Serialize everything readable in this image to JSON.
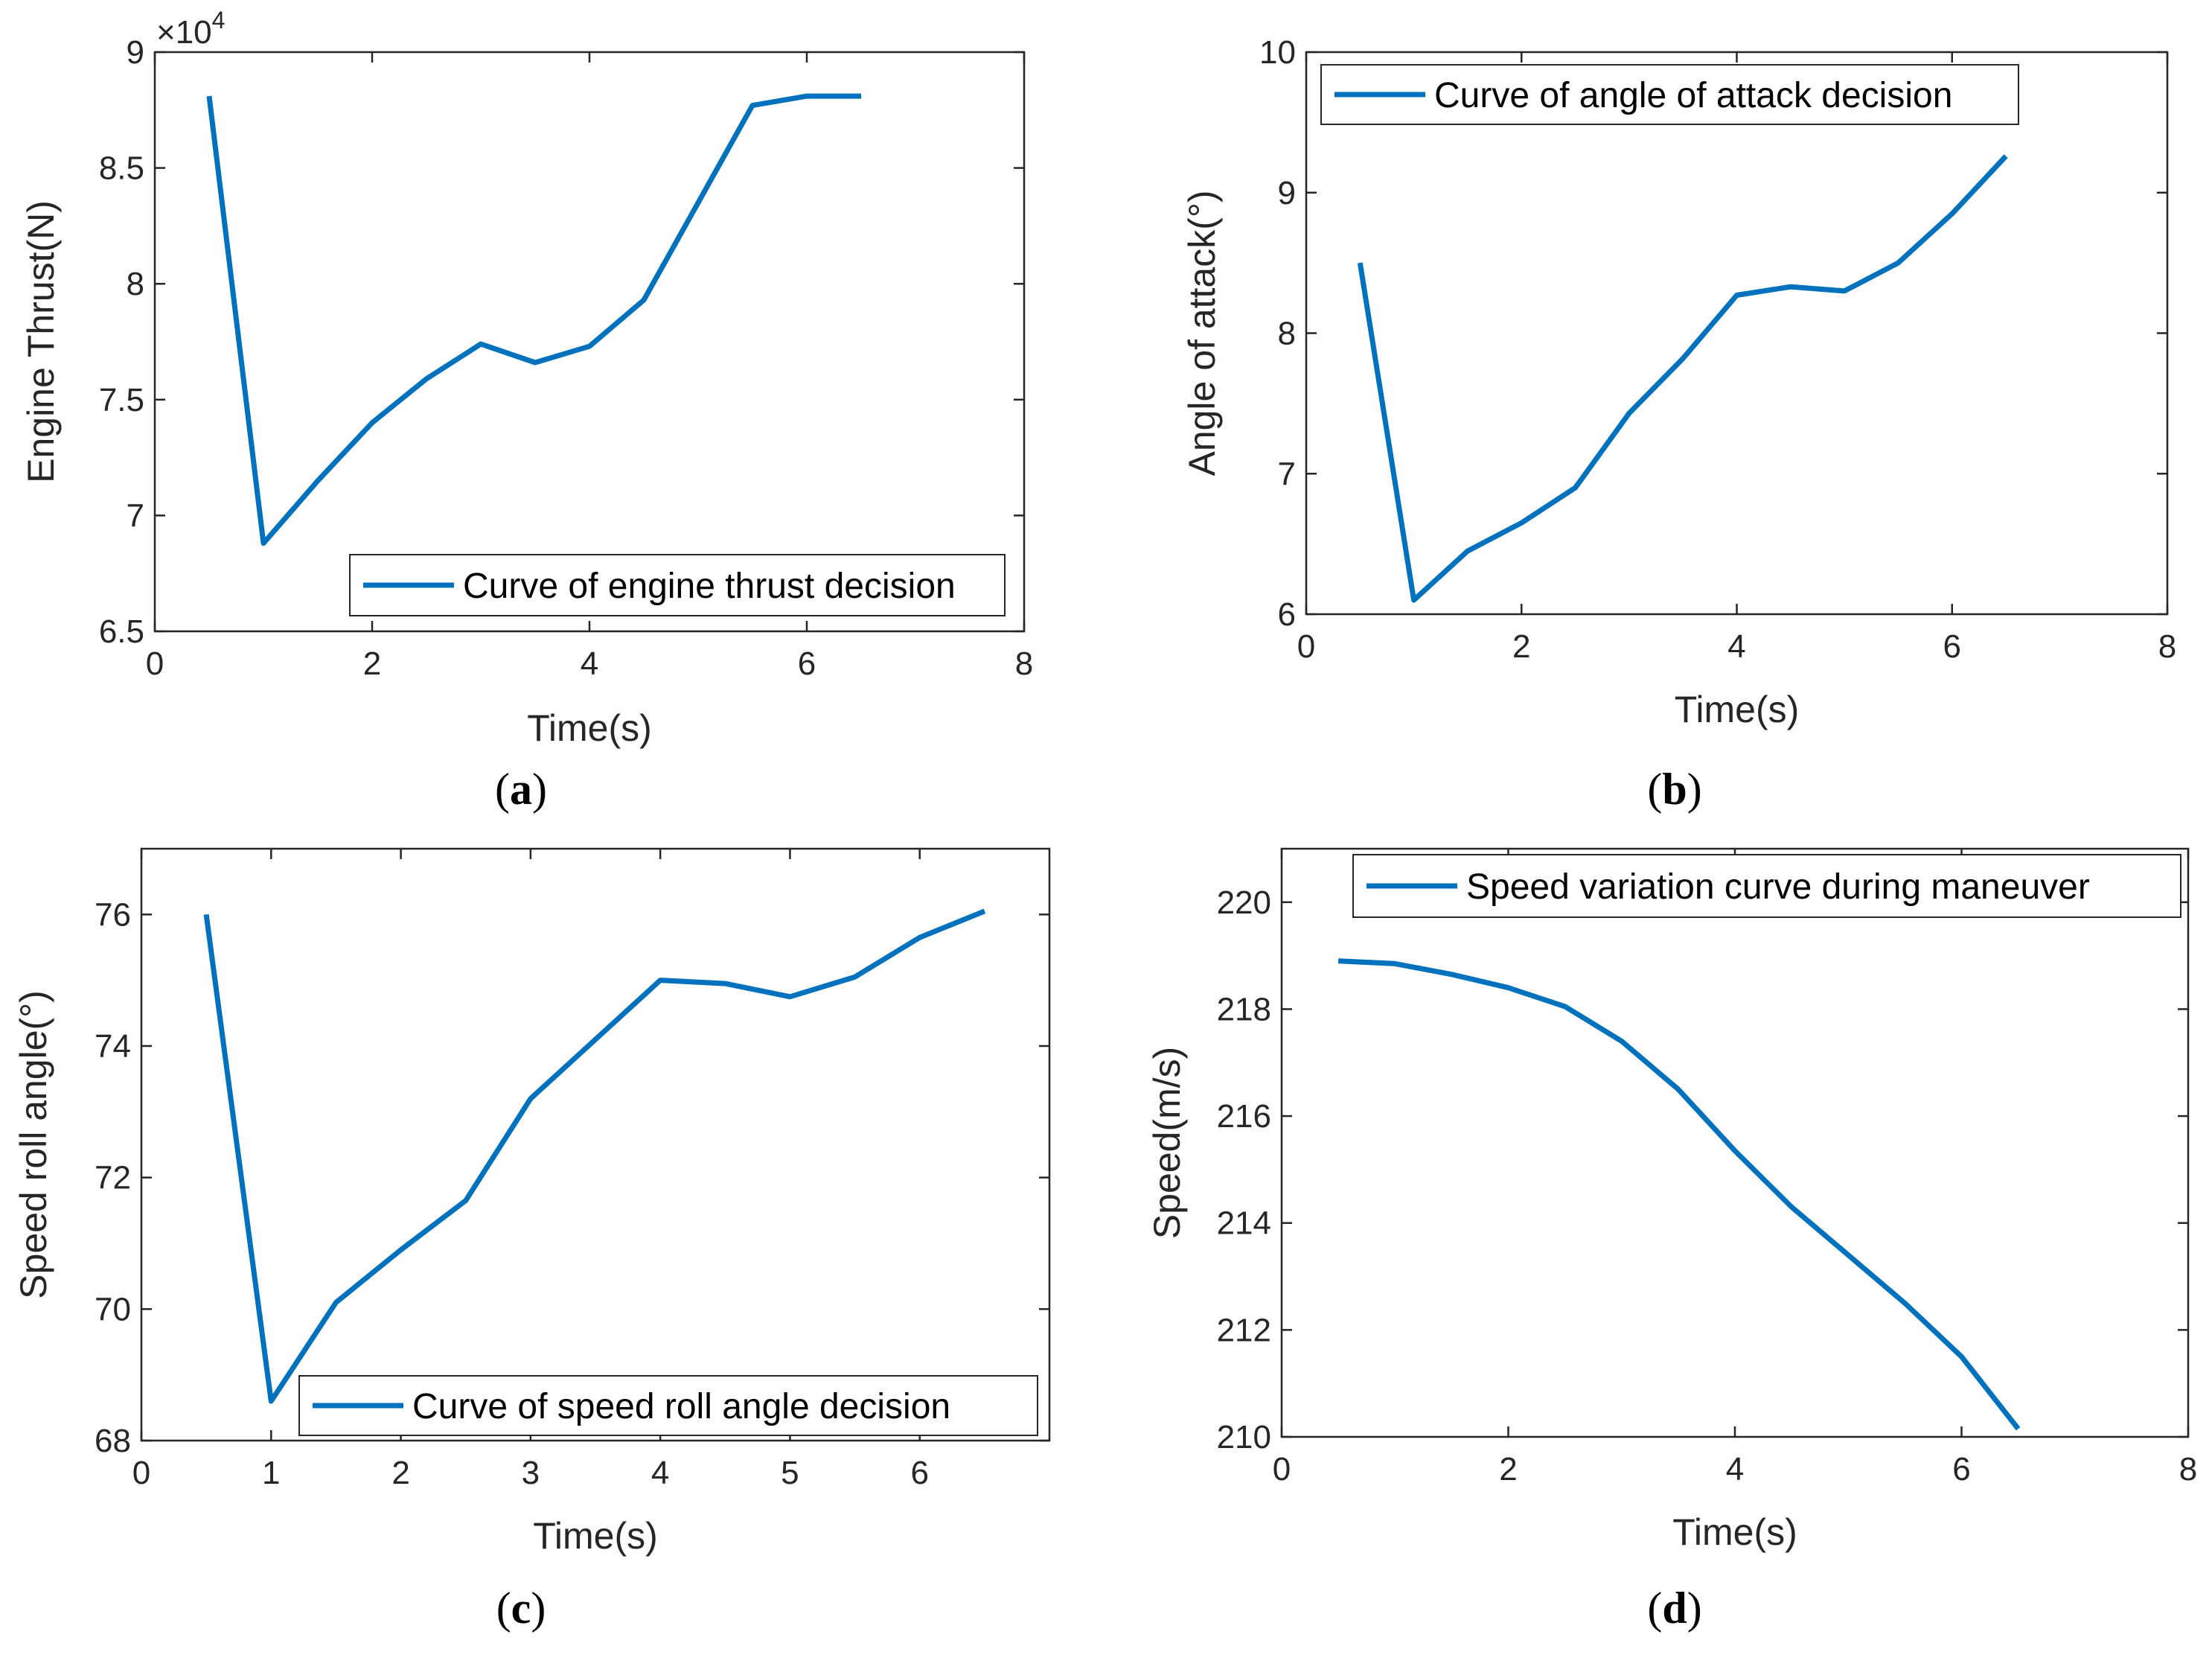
{
  "figure": {
    "line_color": "#0072BD",
    "captions": [
      {
        "open": "(",
        "letter": "a",
        "close": ")"
      },
      {
        "open": "(",
        "letter": "b",
        "close": ")"
      },
      {
        "open": "(",
        "letter": "c",
        "close": ")"
      },
      {
        "open": "(",
        "letter": "d",
        "close": ")"
      }
    ]
  },
  "chart_data": [
    {
      "id": "a",
      "type": "line",
      "title": "",
      "xlabel": "Time(s)",
      "ylabel": "Engine Thrust(N)",
      "xlim": [
        0,
        8
      ],
      "ylim": [
        65000,
        90000
      ],
      "xticks": [
        0,
        2,
        4,
        6,
        8
      ],
      "xtick_labels": [
        "0",
        "2",
        "4",
        "6",
        "8"
      ],
      "yticks": [
        65000,
        70000,
        75000,
        80000,
        85000,
        90000
      ],
      "ytick_labels": [
        "6.5",
        "7",
        "7.5",
        "8",
        "8.5",
        "9"
      ],
      "y_exponent": {
        "base": "×10",
        "power": "4"
      },
      "legend_location": "bottom-right",
      "series": [
        {
          "name": "Curve of engine thrust decision",
          "x": [
            0.5,
            1.0,
            1.5,
            2.0,
            2.5,
            3.0,
            3.5,
            4.0,
            4.5,
            5.0,
            5.5,
            6.0,
            6.5
          ],
          "y": [
            88100,
            68800,
            71500,
            74000,
            75900,
            77400,
            76600,
            77300,
            79300,
            83500,
            87700,
            88100,
            88100
          ]
        }
      ]
    },
    {
      "id": "b",
      "type": "line",
      "title": "",
      "xlabel": "Time(s)",
      "ylabel": "Angle of attack(°)",
      "xlim": [
        0,
        8
      ],
      "ylim": [
        6,
        10
      ],
      "xticks": [
        0,
        2,
        4,
        6,
        8
      ],
      "xtick_labels": [
        "0",
        "2",
        "4",
        "6",
        "8"
      ],
      "yticks": [
        6,
        7,
        8,
        9,
        10
      ],
      "ytick_labels": [
        "6",
        "7",
        "8",
        "9",
        "10"
      ],
      "legend_location": "top-left",
      "series": [
        {
          "name": "Curve of angle of attack decision",
          "x": [
            0.5,
            1.0,
            1.5,
            2.0,
            2.5,
            3.0,
            3.5,
            4.0,
            4.5,
            5.0,
            5.5,
            6.0,
            6.5
          ],
          "y": [
            8.5,
            6.1,
            6.45,
            6.65,
            6.9,
            7.43,
            7.82,
            8.27,
            8.33,
            8.3,
            8.5,
            8.85,
            9.26
          ]
        }
      ]
    },
    {
      "id": "c",
      "type": "line",
      "title": "",
      "xlabel": "Time(s)",
      "ylabel": "Speed roll angle(°)",
      "xlim": [
        0,
        7
      ],
      "ylim": [
        68,
        77
      ],
      "xticks": [
        0,
        1,
        2,
        3,
        4,
        5,
        6
      ],
      "xtick_labels": [
        "0",
        "1",
        "2",
        "3",
        "4",
        "5",
        "6"
      ],
      "yticks": [
        68,
        70,
        72,
        74,
        76
      ],
      "ytick_labels": [
        "68",
        "70",
        "72",
        "74",
        "76"
      ],
      "legend_location": "bottom-right",
      "series": [
        {
          "name": "Curve of speed roll angle decision",
          "x": [
            0.5,
            1.0,
            1.5,
            2.0,
            2.5,
            3.0,
            3.5,
            4.0,
            4.5,
            5.0,
            5.5,
            6.0,
            6.5
          ],
          "y": [
            76.0,
            68.6,
            70.1,
            70.9,
            71.65,
            73.2,
            74.1,
            75.0,
            74.95,
            74.75,
            75.05,
            75.65,
            76.05
          ]
        }
      ]
    },
    {
      "id": "d",
      "type": "line",
      "title": "",
      "xlabel": "Time(s)",
      "ylabel": "Speed(m/s)",
      "xlim": [
        0,
        8
      ],
      "ylim": [
        210,
        221
      ],
      "xticks": [
        0,
        2,
        4,
        6,
        8
      ],
      "xtick_labels": [
        "0",
        "2",
        "4",
        "6",
        "8"
      ],
      "yticks": [
        210,
        212,
        214,
        216,
        218,
        220
      ],
      "ytick_labels": [
        "210",
        "212",
        "214",
        "216",
        "218",
        "220"
      ],
      "legend_location": "top-right",
      "series": [
        {
          "name": "Speed variation curve during maneuver",
          "x": [
            0.5,
            1.0,
            1.5,
            2.0,
            2.5,
            3.0,
            3.5,
            4.0,
            4.5,
            5.0,
            5.5,
            6.0,
            6.5
          ],
          "y": [
            218.9,
            218.85,
            218.65,
            218.4,
            218.05,
            217.4,
            216.5,
            215.35,
            214.3,
            213.4,
            212.5,
            211.5,
            210.15
          ]
        }
      ]
    }
  ]
}
